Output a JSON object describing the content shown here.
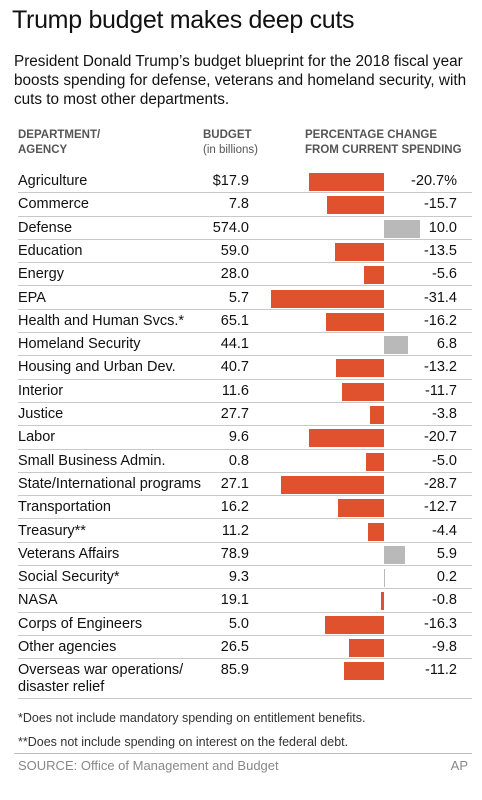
{
  "chart_data": {
    "type": "bar",
    "title": "Trump budget makes deep cuts",
    "subtitle": "President Donald Trump’s budget blueprint for the 2018 fiscal year boosts spending for defense, veterans and homeland security, with cuts to most other departments.",
    "headers": {
      "department": [
        "DEPARTMENT/",
        "AGENCY"
      ],
      "budget": [
        "BUDGET",
        "(in billions)"
      ],
      "change": [
        "PERCENTAGE CHANGE",
        "FROM CURRENT SPENDING"
      ]
    },
    "categories": [
      "Agriculture",
      "Commerce",
      "Defense",
      "Education",
      "Energy",
      "EPA",
      "Health and Human Svcs.*",
      "Homeland Security",
      "Housing and Urban Dev.",
      "Interior",
      "Justice",
      "Labor",
      "Small Business Admin.",
      "State/International programs",
      "Transportation",
      "Treasury**",
      "Veterans Affairs",
      "Social Security*",
      "NASA",
      "Corps of Engineers",
      "Other agencies",
      "Overseas war operations/\ndisaster relief"
    ],
    "budget": [
      "$17.9",
      "7.8",
      "574.0",
      "59.0",
      "28.0",
      "5.7",
      "65.1",
      "44.1",
      "40.7",
      "11.6",
      "27.7",
      "9.6",
      "0.8",
      "27.1",
      "16.2",
      "11.2",
      "78.9",
      "9.3",
      "19.1",
      "5.0",
      "26.5",
      "85.9"
    ],
    "values": [
      -20.7,
      -15.7,
      10.0,
      -13.5,
      -5.6,
      -31.4,
      -16.2,
      6.8,
      -13.2,
      -11.7,
      -3.8,
      -20.7,
      -5.0,
      -28.7,
      -12.7,
      -4.4,
      5.9,
      0.2,
      -0.8,
      -16.3,
      -9.8,
      -11.2
    ],
    "value_labels": [
      "-20.7%",
      "-15.7",
      "10.0",
      "-13.5",
      "-5.6",
      "-31.4",
      "-16.2",
      "6.8",
      "-13.2",
      "-11.7",
      "-3.8",
      "-20.7",
      "-5.0",
      "-28.7",
      "-12.7",
      "-4.4",
      "5.9",
      "0.2",
      "-0.8",
      "-16.3",
      "-9.8",
      "-11.2"
    ],
    "negative_color": "#e0522e",
    "positive_color": "#b9b9b9",
    "footnotes": [
      "*Does not include mandatory spending on entitlement benefits.",
      "**Does not include spending on interest on the federal debt."
    ],
    "source": "SOURCE: Office of Management and Budget",
    "credit": "AP"
  }
}
